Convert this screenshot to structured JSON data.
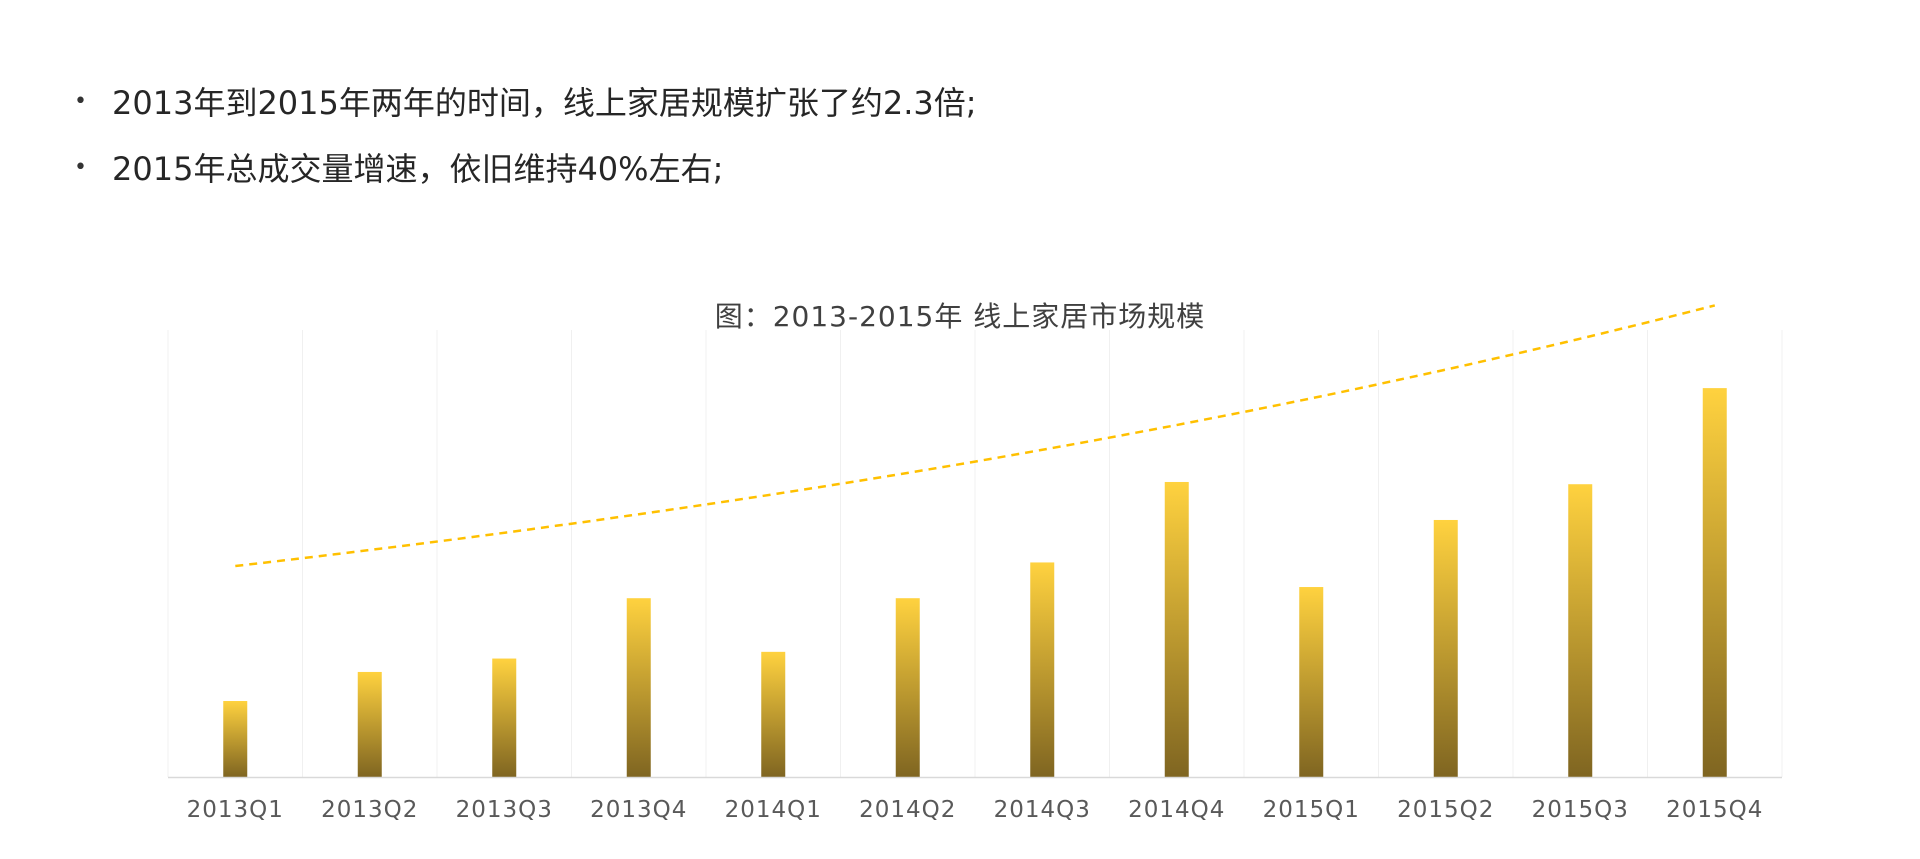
{
  "bullets": [
    "2013年到2015年两年的时间，线上家居规模扩张了约2.3倍;",
    "2015年总成交量增速，依旧维持40%左右;"
  ],
  "chart_data": {
    "type": "bar",
    "title": "图：2013-2015年 线上家居市场规模",
    "categories": [
      "2013Q1",
      "2013Q2",
      "2013Q3",
      "2013Q4",
      "2014Q1",
      "2014Q2",
      "2014Q3",
      "2014Q4",
      "2015Q1",
      "2015Q2",
      "2015Q3",
      "2015Q4"
    ],
    "series": [
      {
        "values": [
          17,
          23.5,
          26.5,
          40,
          28,
          40,
          48,
          66,
          42.5,
          57.5,
          65.5,
          87
        ]
      }
    ],
    "trendline": {
      "type": "exponential",
      "style": "dashed",
      "start_value": 47.2,
      "end_value": 105.5
    },
    "ylim": [
      0,
      100
    ],
    "grid": true,
    "colors": {
      "bar_top": "#FFD23F",
      "bar_bottom": "#7F6521",
      "trendline": "#FFC000",
      "gridline": "#F0F0F0",
      "axis": "#D9D9D9"
    }
  }
}
